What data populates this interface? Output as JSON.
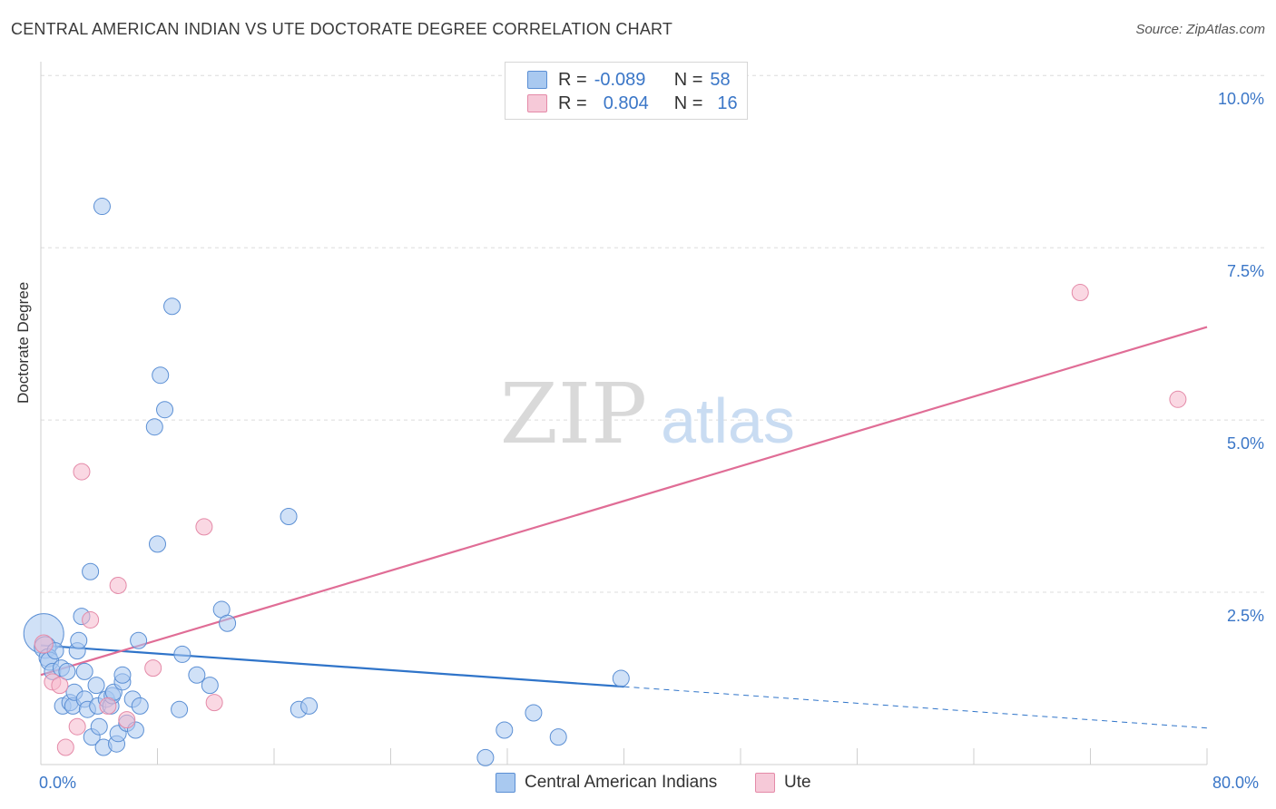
{
  "header": {
    "title": "CENTRAL AMERICAN INDIAN VS UTE DOCTORATE DEGREE CORRELATION CHART",
    "source": "Source: ZipAtlas.com"
  },
  "watermark": {
    "zip": "ZIP",
    "atlas": "atlas"
  },
  "legend": {
    "rows": [
      {
        "r_label": "R =",
        "r_value": "-0.089",
        "n_label": "N =",
        "n_value": "58",
        "color": "#a9c9f0"
      },
      {
        "r_label": "R =",
        "r_value": "0.804",
        "n_label": "N =",
        "n_value": "16",
        "color": "#f6b8cc"
      }
    ]
  },
  "bottom_legend": {
    "series1": "Central American Indians",
    "series2": "Ute"
  },
  "axis": {
    "x_min_label": "0.0%",
    "x_max_label": "80.0%",
    "y_ticks": [
      "2.5%",
      "5.0%",
      "7.5%",
      "10.0%"
    ],
    "ylabel": "Doctorate Degree"
  },
  "chart_data": {
    "type": "scatter",
    "title": "CENTRAL AMERICAN INDIAN VS UTE DOCTORATE DEGREE CORRELATION CHART",
    "xlabel": "",
    "ylabel": "Doctorate Degree",
    "xlim": [
      0,
      80
    ],
    "ylim": [
      0,
      10.2
    ],
    "y_tick_values": [
      2.5,
      5.0,
      7.5,
      10.0
    ],
    "grid": true,
    "series": [
      {
        "name": "Central American Indians",
        "color": "#a9c9f0",
        "stroke": "#5b8fd4",
        "line_color": "#2f74c9",
        "R": -0.089,
        "N": 58,
        "trend": {
          "x0": 0,
          "y0": 1.73,
          "x1": 40,
          "y1": 1.13,
          "x_dash_end": 80,
          "y_dash_end": 0.53
        },
        "points": [
          [
            0.2,
            1.9,
            22
          ],
          [
            0.3,
            1.7,
            12
          ],
          [
            0.5,
            1.55,
            10
          ],
          [
            0.6,
            1.5,
            10
          ],
          [
            0.8,
            1.35,
            9
          ],
          [
            1.0,
            1.65,
            9
          ],
          [
            1.4,
            1.4,
            9
          ],
          [
            1.8,
            1.35,
            9
          ],
          [
            1.5,
            0.85,
            9
          ],
          [
            2.0,
            0.9,
            9
          ],
          [
            2.2,
            0.85,
            9
          ],
          [
            2.3,
            1.05,
            9
          ],
          [
            2.5,
            1.65,
            9
          ],
          [
            2.6,
            1.8,
            9
          ],
          [
            2.8,
            2.15,
            9
          ],
          [
            3.0,
            0.95,
            9
          ],
          [
            3.0,
            1.35,
            9
          ],
          [
            3.2,
            0.8,
            9
          ],
          [
            3.4,
            2.8,
            9
          ],
          [
            3.5,
            0.4,
            9
          ],
          [
            3.8,
            1.15,
            9
          ],
          [
            3.9,
            0.85,
            9
          ],
          [
            4.0,
            0.55,
            9
          ],
          [
            4.3,
            0.25,
            9
          ],
          [
            4.5,
            0.95,
            9
          ],
          [
            4.8,
            0.85,
            9
          ],
          [
            4.9,
            1.0,
            9
          ],
          [
            5.0,
            1.05,
            9
          ],
          [
            5.2,
            0.3,
            9
          ],
          [
            5.3,
            0.45,
            9
          ],
          [
            5.6,
            1.2,
            9
          ],
          [
            5.6,
            1.3,
            9
          ],
          [
            5.9,
            0.6,
            9
          ],
          [
            6.3,
            0.95,
            9
          ],
          [
            6.5,
            0.5,
            9
          ],
          [
            6.7,
            1.8,
            9
          ],
          [
            6.8,
            0.85,
            9
          ],
          [
            4.2,
            8.1,
            9
          ],
          [
            7.8,
            4.9,
            9
          ],
          [
            8.0,
            3.2,
            9
          ],
          [
            8.2,
            5.65,
            9
          ],
          [
            8.5,
            5.15,
            9
          ],
          [
            9.0,
            6.65,
            9
          ],
          [
            9.5,
            0.8,
            9
          ],
          [
            9.7,
            1.6,
            9
          ],
          [
            10.7,
            1.3,
            9
          ],
          [
            11.6,
            1.15,
            9
          ],
          [
            12.4,
            2.25,
            9
          ],
          [
            12.8,
            2.05,
            9
          ],
          [
            17.0,
            3.6,
            9
          ],
          [
            17.7,
            0.8,
            9
          ],
          [
            18.4,
            0.85,
            9
          ],
          [
            30.5,
            0.1,
            9
          ],
          [
            31.8,
            0.5,
            9
          ],
          [
            33.8,
            0.75,
            9
          ],
          [
            35.5,
            0.4,
            9
          ],
          [
            39.8,
            1.25,
            9
          ]
        ]
      },
      {
        "name": "Ute",
        "color": "#f6b8cc",
        "stroke": "#e48aa8",
        "line_color": "#e06d96",
        "R": 0.804,
        "N": 16,
        "trend": {
          "x0": 0,
          "y0": 1.3,
          "x1": 80,
          "y1": 6.35
        },
        "points": [
          [
            0.2,
            1.75,
            10
          ],
          [
            0.8,
            1.2,
            9
          ],
          [
            1.3,
            1.15,
            9
          ],
          [
            1.7,
            0.25,
            9
          ],
          [
            2.5,
            0.55,
            9
          ],
          [
            2.8,
            4.25,
            9
          ],
          [
            3.4,
            2.1,
            9
          ],
          [
            4.6,
            0.85,
            9
          ],
          [
            5.3,
            2.6,
            9
          ],
          [
            5.9,
            0.65,
            9
          ],
          [
            7.7,
            1.4,
            9
          ],
          [
            11.2,
            3.45,
            9
          ],
          [
            11.9,
            0.9,
            9
          ],
          [
            71.3,
            6.85,
            9
          ],
          [
            78.0,
            5.3,
            9
          ]
        ]
      }
    ]
  }
}
